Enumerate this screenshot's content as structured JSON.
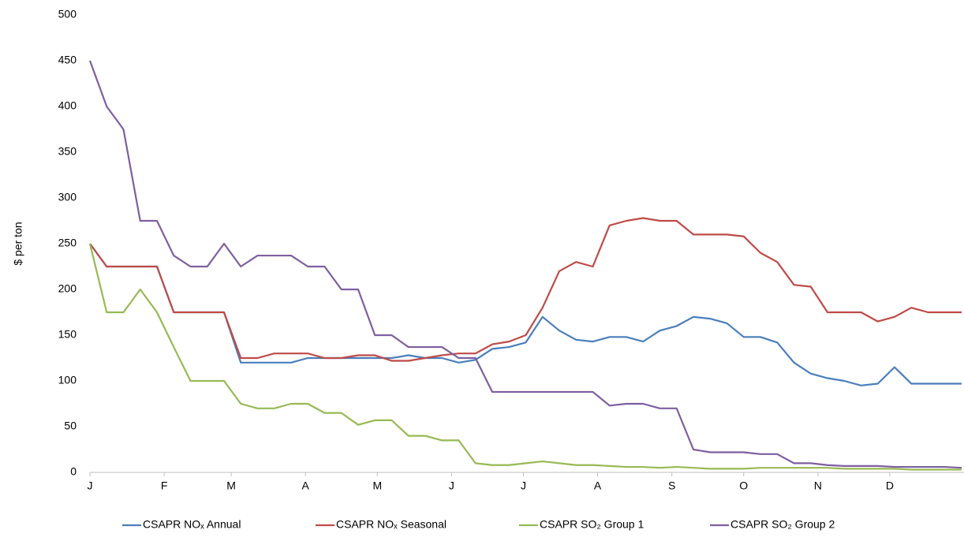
{
  "chart_data": {
    "type": "line",
    "ylabel": "$ per ton",
    "x": [
      0,
      7,
      14,
      21,
      28,
      35,
      42,
      49,
      56,
      63,
      70,
      77,
      84,
      91,
      98,
      105,
      112,
      119,
      126,
      133,
      140,
      147,
      154,
      161,
      168,
      175,
      182,
      189,
      196,
      203,
      210,
      217,
      224,
      231,
      238,
      245,
      252,
      259,
      266,
      273,
      280,
      287,
      294,
      301,
      308,
      315,
      322,
      329,
      336,
      343,
      350,
      357,
      364
    ],
    "xlim": [
      0,
      365
    ],
    "xticks": [
      {
        "value": 0,
        "label": "J"
      },
      {
        "value": 31,
        "label": "F"
      },
      {
        "value": 59,
        "label": "M"
      },
      {
        "value": 90,
        "label": "A"
      },
      {
        "value": 120,
        "label": "M"
      },
      {
        "value": 151,
        "label": "J"
      },
      {
        "value": 181,
        "label": "J"
      },
      {
        "value": 212,
        "label": "A"
      },
      {
        "value": 243,
        "label": "S"
      },
      {
        "value": 273,
        "label": "O"
      },
      {
        "value": 304,
        "label": "N"
      },
      {
        "value": 334,
        "label": "D"
      }
    ],
    "ylim": [
      0,
      500
    ],
    "yticks": [
      0,
      50,
      100,
      150,
      200,
      250,
      300,
      350,
      400,
      450,
      500
    ],
    "grid": false,
    "legend": "bottom",
    "series": [
      {
        "name": "CSAPR NOₓ Annual",
        "color": "#4a7ebb",
        "values": [
          250,
          225,
          225,
          225,
          225,
          175,
          175,
          175,
          175,
          120,
          120,
          120,
          120,
          125,
          125,
          125,
          125,
          125,
          125,
          128,
          125,
          125,
          120,
          123,
          135,
          137,
          142,
          170,
          155,
          145,
          143,
          148,
          148,
          143,
          155,
          160,
          170,
          168,
          163,
          148,
          148,
          142,
          120,
          108,
          103,
          100,
          95,
          97,
          115,
          97,
          97,
          97,
          97
        ]
      },
      {
        "name": "CSAPR NOₓ Seasonal",
        "color": "#be4b48",
        "values": [
          250,
          225,
          225,
          225,
          225,
          175,
          175,
          175,
          175,
          125,
          125,
          130,
          130,
          130,
          125,
          125,
          128,
          128,
          122,
          122,
          125,
          128,
          130,
          130,
          140,
          143,
          150,
          180,
          220,
          230,
          225,
          270,
          275,
          278,
          275,
          275,
          260,
          260,
          260,
          258,
          240,
          230,
          205,
          203,
          175,
          175,
          175,
          165,
          170,
          180,
          175,
          175,
          175
        ]
      },
      {
        "name": "CSAPR SO₂ Group 1",
        "color": "#98b954",
        "values": [
          250,
          175,
          175,
          200,
          175,
          137,
          100,
          100,
          100,
          75,
          70,
          70,
          75,
          75,
          65,
          65,
          52,
          57,
          57,
          40,
          40,
          35,
          35,
          10,
          8,
          8,
          10,
          12,
          10,
          8,
          8,
          7,
          6,
          6,
          5,
          6,
          5,
          4,
          4,
          4,
          5,
          5,
          5,
          5,
          5,
          4,
          4,
          4,
          4,
          3,
          3,
          3,
          3
        ]
      },
      {
        "name": "CSAPR SO₂ Group 2",
        "color": "#7d5fa0",
        "values": [
          450,
          400,
          375,
          275,
          275,
          237,
          225,
          225,
          250,
          225,
          237,
          237,
          237,
          225,
          225,
          200,
          200,
          150,
          150,
          137,
          137,
          137,
          125,
          125,
          88,
          88,
          88,
          88,
          88,
          88,
          88,
          73,
          75,
          75,
          70,
          70,
          25,
          22,
          22,
          22,
          20,
          20,
          10,
          10,
          8,
          7,
          7,
          7,
          6,
          6,
          6,
          6,
          5
        ]
      }
    ]
  }
}
